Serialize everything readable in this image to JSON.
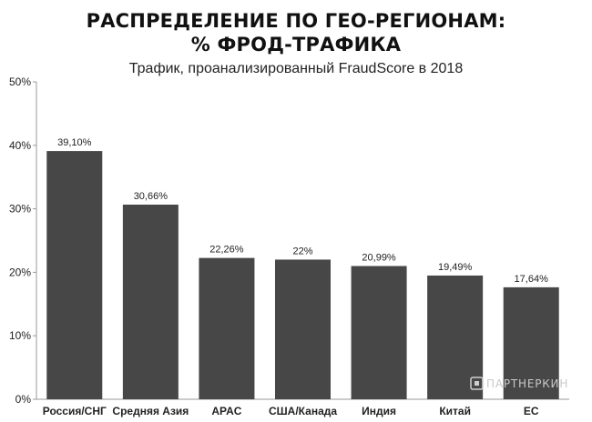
{
  "chart_data": {
    "type": "bar",
    "title_lines": [
      "РАСПРЕДЕЛЕНИЕ ПО ГЕО-РЕГИОНАМ:",
      "% ФРОД-ТРАФИКА"
    ],
    "subtitle": "Трафик, проанализированный FraudScore в 2018",
    "categories": [
      "Россия/СНГ",
      "Средняя Азия",
      "APAC",
      "США/Канада",
      "Индия",
      "Китай",
      "ЕС"
    ],
    "values": [
      39.1,
      30.66,
      22.26,
      22,
      20.99,
      19.49,
      17.64
    ],
    "value_labels": [
      "39,10%",
      "30,66%",
      "22,26%",
      "22%",
      "20,99%",
      "19,49%",
      "17,64%"
    ],
    "yticks": [
      "0%",
      "10%",
      "20%",
      "30%",
      "40%",
      "50%"
    ],
    "ylim": [
      0,
      50
    ],
    "xlabel": "",
    "ylabel": "",
    "grid": false,
    "legend": "none",
    "bar_color": "#474747",
    "axis_color": "#999999"
  },
  "watermark": {
    "text": "ПАРТНЕРКИН",
    "icon": "partnerkin-logo-icon"
  }
}
